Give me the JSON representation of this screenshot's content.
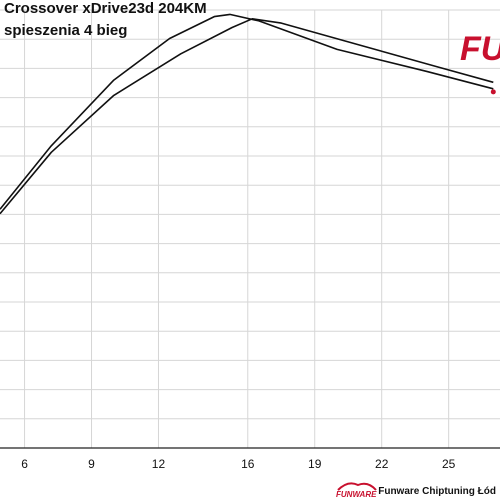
{
  "header": {
    "title_line1": "Crossover xDrive23d 204KM",
    "title_line2": "spieszenia 4 bieg"
  },
  "brand": {
    "logo_text": "FU",
    "footer_logo_text": "FUNWARE",
    "footer_text": "Funware Chiptuning Łód",
    "accent_color": "#c8102e"
  },
  "chart_data": {
    "type": "line",
    "title": "",
    "xlabel": "",
    "ylabel": "",
    "xlim": [
      4.9,
      27.3
    ],
    "ylim": [
      0,
      1
    ],
    "x_ticks": [
      6,
      9,
      12,
      16,
      19,
      22,
      25
    ],
    "grid": true,
    "series": [
      {
        "values": [
          [
            4.9,
            0.545
          ],
          [
            7.2,
            0.69
          ],
          [
            10.0,
            0.84
          ],
          [
            12.5,
            0.935
          ],
          [
            14.5,
            0.985
          ],
          [
            15.2,
            0.99
          ],
          [
            16.5,
            0.975
          ],
          [
            20.0,
            0.91
          ],
          [
            24.0,
            0.86
          ],
          [
            27.0,
            0.82
          ]
        ]
      },
      {
        "values": [
          [
            4.9,
            0.535
          ],
          [
            7.2,
            0.675
          ],
          [
            10.0,
            0.805
          ],
          [
            13.0,
            0.9
          ],
          [
            15.3,
            0.96
          ],
          [
            16.2,
            0.98
          ],
          [
            17.5,
            0.97
          ],
          [
            21.0,
            0.92
          ],
          [
            24.5,
            0.87
          ],
          [
            27.0,
            0.835
          ]
        ]
      }
    ]
  }
}
